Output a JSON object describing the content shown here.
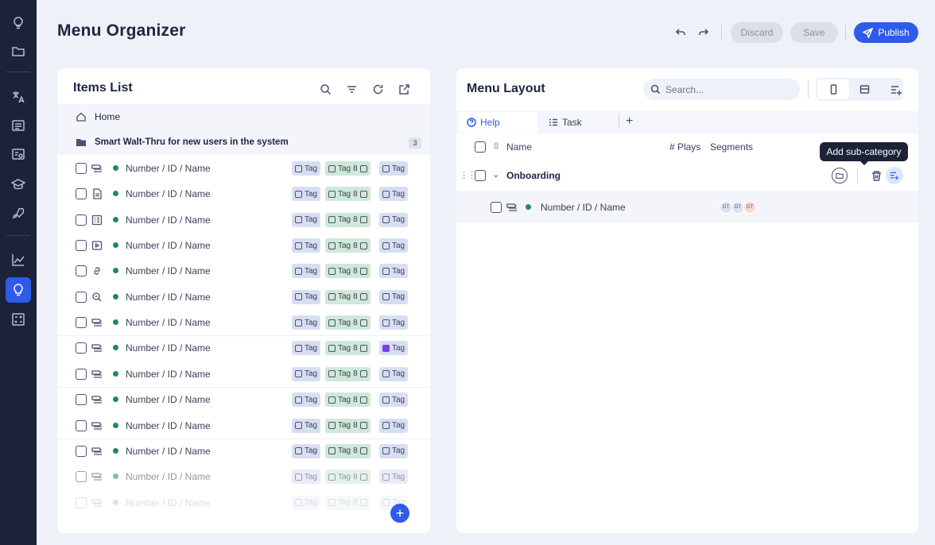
{
  "page": {
    "title": "Menu Organizer"
  },
  "header": {
    "discard_label": "Discard",
    "save_label": "Save",
    "publish_label": "Publish"
  },
  "items_list": {
    "title": "Items List",
    "home_label": "Home",
    "folder": {
      "label": "Smart Walt-Thru for new users in the system",
      "count": "3"
    },
    "items": [
      {
        "name": "Number / ID / Name",
        "icon": "walkthru-icon"
      },
      {
        "name": "Number / ID / Name",
        "icon": "article-icon"
      },
      {
        "name": "Number / ID / Name",
        "icon": "form-icon"
      },
      {
        "name": "Number / ID / Name",
        "icon": "video-icon"
      },
      {
        "name": "Number / ID / Name",
        "icon": "link-icon"
      },
      {
        "name": "Number / ID / Name",
        "icon": "search-page-icon"
      },
      {
        "name": "Number / ID / Name",
        "icon": "walkthru-icon"
      },
      {
        "name": "Number / ID / Name",
        "icon": "walkthru-icon"
      },
      {
        "name": "Number / ID / Name",
        "icon": "walkthru-icon"
      },
      {
        "name": "Number / ID / Name",
        "icon": "walkthru-icon"
      },
      {
        "name": "Number / ID / Name",
        "icon": "walkthru-icon"
      },
      {
        "name": "Number / ID / Name",
        "icon": "walkthru-icon"
      },
      {
        "name": "Number / ID / Name",
        "icon": "walkthru-icon"
      },
      {
        "name": "Number / ID / Name",
        "icon": "walkthru-icon"
      }
    ],
    "tag_label": "Tag",
    "tag_count": "8"
  },
  "menu_layout": {
    "title": "Menu Layout",
    "search_placeholder": "Search...",
    "tabs": [
      {
        "label": "Help"
      },
      {
        "label": "Task"
      }
    ],
    "columns": {
      "name": "Name",
      "plays": "# Plays",
      "segments": "Segments"
    },
    "category": {
      "label": "Onboarding"
    },
    "child": {
      "name": "Number / ID / Name",
      "avatars": [
        "DT",
        "DT",
        "DT"
      ]
    },
    "tooltip": "Add sub-category"
  },
  "colors": {
    "accent": "#2f5bea",
    "sidebar": "#1c2238",
    "status_green": "#1f8a5b",
    "tag_blue": "#d8def2",
    "tag_green": "#cfe8d8"
  }
}
